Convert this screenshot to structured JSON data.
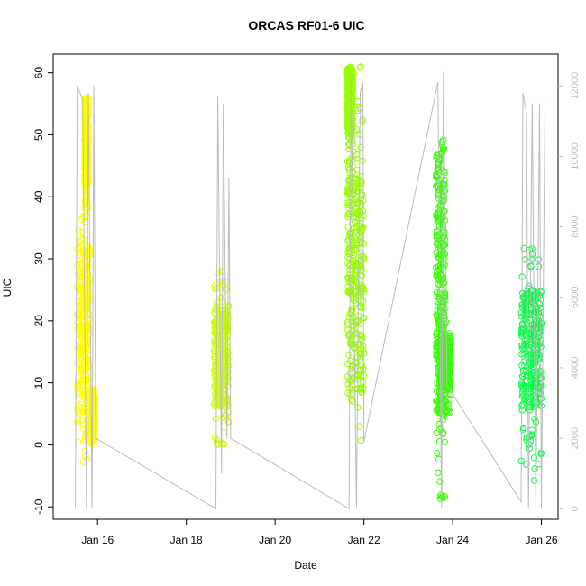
{
  "chart_data": {
    "type": "scatter",
    "title": "ORCAS RF01-6 UIC",
    "xlabel": "Date",
    "ylabel": "UIC",
    "x_axis": {
      "range": [
        "2016-01-15",
        "2016-01-26 09:00"
      ],
      "ticks": [
        {
          "date": "2016-01-16",
          "label": "Jan 16"
        },
        {
          "date": "2016-01-18",
          "label": "Jan 18"
        },
        {
          "date": "2016-01-20",
          "label": "Jan 20"
        },
        {
          "date": "2016-01-22",
          "label": "Jan 22"
        },
        {
          "date": "2016-01-24",
          "label": "Jan 24"
        },
        {
          "date": "2016-01-26",
          "label": "Jan 26"
        }
      ]
    },
    "y_axis_left": {
      "range": [
        -12,
        63
      ],
      "ticks": [
        -10,
        0,
        10,
        20,
        30,
        40,
        50,
        60
      ]
    },
    "y_axis_right": {
      "range": [
        -300,
        12900
      ],
      "ticks": [
        0,
        2000,
        4000,
        6000,
        8000,
        10000,
        12000
      ],
      "color": "#bbbbbb"
    },
    "grid": false,
    "series": [
      {
        "style": "points",
        "color": "#ffff00",
        "clusters": [
          {
            "start": "2016-01-15 13:00",
            "end": "2016-01-15 20:00",
            "values": [
              -3,
              37
            ],
            "dense": [
              5,
              32
            ]
          },
          {
            "start": "2016-01-15 17:00",
            "end": "2016-01-15 19:00",
            "values": [
              38,
              56
            ],
            "dense": [
              42,
              56
            ]
          },
          {
            "start": "2016-01-15 20:00",
            "end": "2016-01-15 22:30",
            "values": [
              0,
              9
            ],
            "dense": [
              2,
              8
            ]
          }
        ]
      },
      {
        "style": "points",
        "color": "#ccff00",
        "clusters": [
          {
            "start": "2016-01-18 15:00",
            "end": "2016-01-18 23:00",
            "values": [
              0,
              28
            ],
            "dense": [
              6,
              22
            ]
          }
        ]
      },
      {
        "style": "points",
        "color": "#99ff00",
        "clusters": [
          {
            "start": "2016-01-21 15:00",
            "end": "2016-01-22 00:00",
            "values": [
              0.5,
              61
            ],
            "dense": [
              8,
              43
            ]
          },
          {
            "start": "2016-01-21 15:00",
            "end": "2016-01-21 18:00",
            "values": [
              40,
              61
            ],
            "dense": [
              50,
              61
            ]
          }
        ]
      },
      {
        "style": "points",
        "color": "#33ff00",
        "clusters": [
          {
            "start": "2016-01-23 15:00",
            "end": "2016-01-23 20:00",
            "values": [
              -9,
              50
            ],
            "dense": [
              5,
              48
            ]
          },
          {
            "start": "2016-01-23 17:00",
            "end": "2016-01-23 23:00",
            "values": [
              5,
              20
            ],
            "dense": [
              9,
              17
            ]
          }
        ]
      },
      {
        "style": "points",
        "color": "#00ff44",
        "clusters": [
          {
            "start": "2016-01-25 13:00",
            "end": "2016-01-26 00:00",
            "values": [
              -6,
              32
            ],
            "dense": [
              6,
              25
            ]
          }
        ]
      },
      {
        "style": "line",
        "color": "#bbbbbb",
        "axis": "right",
        "points": [
          [
            "2016-01-15 12:00",
            0
          ],
          [
            "2016-01-15 13:00",
            12000
          ],
          [
            "2016-01-15 16:00",
            11600
          ],
          [
            "2016-01-15 18:00",
            0
          ],
          [
            "2016-01-15 19:00",
            11800
          ],
          [
            "2016-01-15 21:00",
            0
          ],
          [
            "2016-01-15 22:00",
            12000
          ],
          [
            "2016-01-15 23:00",
            2000
          ],
          [
            "2016-01-18 16:00",
            0
          ],
          [
            "2016-01-18 17:00",
            11700
          ],
          [
            "2016-01-18 19:00",
            1000
          ],
          [
            "2016-01-18 20:00",
            11500
          ],
          [
            "2016-01-18 22:00",
            2000
          ],
          [
            "2016-01-18 23:00",
            9400
          ],
          [
            "2016-01-19 00:00",
            2000
          ],
          [
            "2016-01-21 16:00",
            0
          ],
          [
            "2016-01-21 17:00",
            12400
          ],
          [
            "2016-01-21 20:00",
            0
          ],
          [
            "2016-01-21 22:00",
            11800
          ],
          [
            "2016-01-21 23:30",
            12100
          ],
          [
            "2016-01-22 00:00",
            1900
          ],
          [
            "2016-01-23 16:00",
            12100
          ],
          [
            "2016-01-23 18:00",
            0
          ],
          [
            "2016-01-23 19:00",
            12400
          ],
          [
            "2016-01-23 21:00",
            3500
          ],
          [
            "2016-01-25 13:00",
            200
          ],
          [
            "2016-01-25 14:00",
            11800
          ],
          [
            "2016-01-25 16:00",
            11200
          ],
          [
            "2016-01-25 17:00",
            0
          ],
          [
            "2016-01-25 19:00",
            11500
          ],
          [
            "2016-01-25 21:00",
            0
          ],
          [
            "2016-01-25 23:00",
            11500
          ],
          [
            "2016-01-26 00:00",
            0
          ],
          [
            "2016-01-26 02:00",
            11700
          ]
        ]
      }
    ]
  }
}
